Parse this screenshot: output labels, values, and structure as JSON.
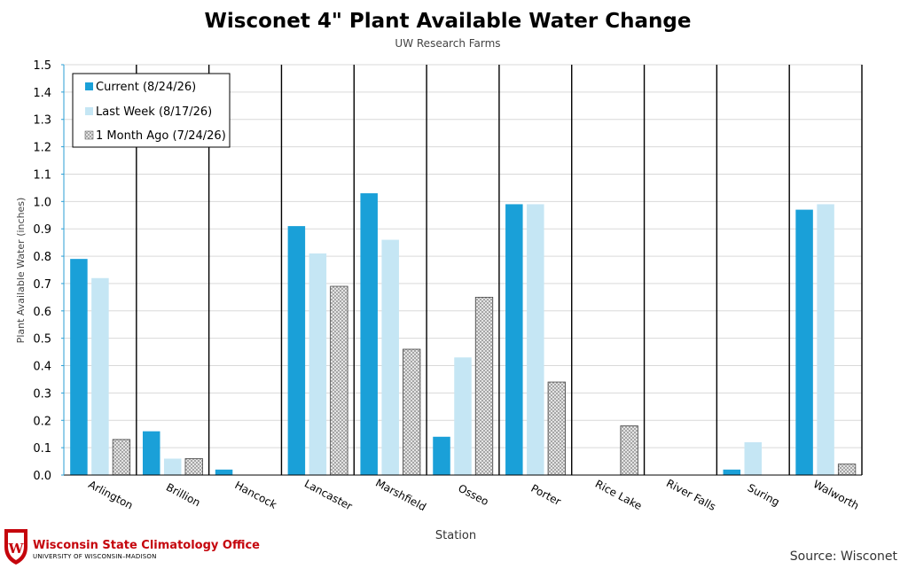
{
  "chart_data": {
    "type": "bar",
    "title": "Wisconet 4\" Plant Available Water Change",
    "subtitle": "UW Research Farms",
    "xlabel": "Station",
    "ylabel": "Plant Available Water (inches)",
    "ylim": [
      0,
      1.5
    ],
    "yticks": [
      "0.0",
      "0.1",
      "0.2",
      "0.3",
      "0.4",
      "0.5",
      "0.6",
      "0.7",
      "0.8",
      "0.9",
      "1.0",
      "1.1",
      "1.2",
      "1.3",
      "1.4",
      "1.5"
    ],
    "grid": true,
    "legend_position": "top-left",
    "categories": [
      "Arlington",
      "Brillion",
      "Hancock",
      "Lancaster",
      "Marshfield",
      "Osseo",
      "Porter",
      "Rice Lake",
      "River Falls",
      "Suring",
      "Walworth"
    ],
    "series": [
      {
        "name": "Current (8/24/26)",
        "color": "#1aa0d8",
        "values": [
          0.79,
          0.16,
          0.02,
          0.91,
          1.03,
          0.14,
          0.99,
          null,
          null,
          0.02,
          0.97
        ]
      },
      {
        "name": "Last Week (8/17/26)",
        "color": "#c5e6f4",
        "values": [
          0.72,
          0.06,
          null,
          0.81,
          0.86,
          0.43,
          0.99,
          null,
          null,
          0.12,
          0.99
        ]
      },
      {
        "name": "1 Month Ago (7/24/26)",
        "color": "#d9d9d9",
        "values": [
          0.13,
          0.06,
          null,
          0.69,
          0.46,
          0.65,
          0.34,
          0.18,
          null,
          null,
          0.04
        ]
      }
    ]
  },
  "source": "Source: Wisconet",
  "logo": {
    "name": "Wisconsin State Climatology Office",
    "sub": "UNIVERSITY OF WISCONSIN–MADISON",
    "icon": "uw-crest-icon"
  }
}
